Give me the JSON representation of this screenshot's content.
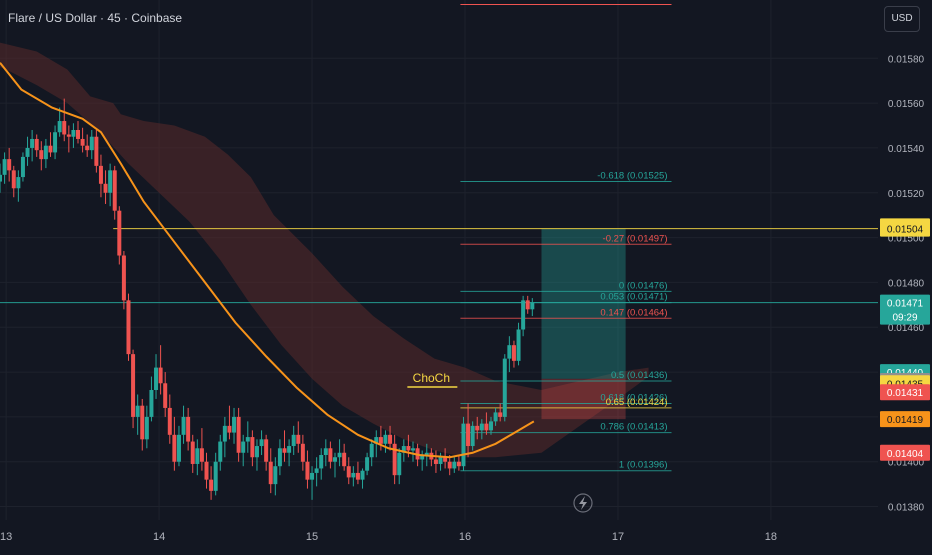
{
  "header": {
    "title": "Flare / US Dollar · 45 · Coinbase",
    "currency_button": "USD"
  },
  "colors": {
    "background": "#131722",
    "up": "#26a69a",
    "down": "#ef5350",
    "ma": "#f7931a",
    "cloud": "#5a2a2a",
    "fib": "#26a69a",
    "fib_red": "#ef5350",
    "fib_yellow": "#f5d742"
  },
  "icons": {
    "replay": "lightning-icon"
  },
  "chart_data": {
    "type": "candlestick",
    "title": "Flare / US Dollar · 45 · Coinbase",
    "xlabel": "",
    "ylabel": "",
    "x_ticks": [
      "13",
      "14",
      "15",
      "16",
      "17",
      "18"
    ],
    "y_ticks": [
      "0.01380",
      "0.01400",
      "0.01420",
      "0.01440",
      "0.01460",
      "0.01480",
      "0.01500",
      "0.01520",
      "0.01540",
      "0.01560",
      "0.01580"
    ],
    "ylim": [
      0.01374,
      0.01606
    ],
    "xlim": [
      12.96,
      18.7
    ],
    "candles": [
      [
        12.96,
        0.01525,
        0.01533,
        0.0152,
        0.01528
      ],
      [
        12.99,
        0.01528,
        0.01538,
        0.01524,
        0.01535
      ],
      [
        13.02,
        0.01535,
        0.0154,
        0.01525,
        0.0153
      ],
      [
        13.05,
        0.0153,
        0.01532,
        0.01518,
        0.01522
      ],
      [
        13.08,
        0.01522,
        0.0153,
        0.01516,
        0.01527
      ],
      [
        13.11,
        0.01527,
        0.01538,
        0.01525,
        0.01536
      ],
      [
        13.14,
        0.01536,
        0.01545,
        0.01532,
        0.0154
      ],
      [
        13.17,
        0.0154,
        0.01548,
        0.01534,
        0.01544
      ],
      [
        13.2,
        0.01544,
        0.01546,
        0.01536,
        0.01539
      ],
      [
        13.23,
        0.01539,
        0.01543,
        0.0153,
        0.01535
      ],
      [
        13.26,
        0.01535,
        0.01544,
        0.01531,
        0.01541
      ],
      [
        13.29,
        0.01541,
        0.01547,
        0.01536,
        0.01538
      ],
      [
        13.32,
        0.01538,
        0.0155,
        0.01535,
        0.01547
      ],
      [
        13.35,
        0.01547,
        0.01558,
        0.01545,
        0.01552
      ],
      [
        13.38,
        0.01552,
        0.01562,
        0.01543,
        0.01546
      ],
      [
        13.41,
        0.01546,
        0.0155,
        0.01538,
        0.01545
      ],
      [
        13.44,
        0.01545,
        0.01551,
        0.0154,
        0.01548
      ],
      [
        13.47,
        0.01548,
        0.01552,
        0.01542,
        0.01544
      ],
      [
        13.5,
        0.01544,
        0.01549,
        0.01538,
        0.01541
      ],
      [
        13.53,
        0.01541,
        0.01546,
        0.01536,
        0.01539
      ],
      [
        13.56,
        0.01539,
        0.01548,
        0.01535,
        0.01545
      ],
      [
        13.59,
        0.01545,
        0.01548,
        0.01529,
        0.01532
      ],
      [
        13.62,
        0.01532,
        0.01537,
        0.01518,
        0.01524
      ],
      [
        13.65,
        0.01524,
        0.0153,
        0.01515,
        0.0152
      ],
      [
        13.68,
        0.0152,
        0.01533,
        0.01514,
        0.0153
      ],
      [
        13.71,
        0.0153,
        0.01532,
        0.01508,
        0.01512
      ],
      [
        13.74,
        0.01512,
        0.01514,
        0.01488,
        0.01492
      ],
      [
        13.77,
        0.01492,
        0.01494,
        0.01468,
        0.01472
      ],
      [
        13.8,
        0.01472,
        0.01475,
        0.01445,
        0.01448
      ],
      [
        13.83,
        0.01448,
        0.0145,
        0.01415,
        0.0142
      ],
      [
        13.86,
        0.0142,
        0.0143,
        0.01412,
        0.01425
      ],
      [
        13.89,
        0.01425,
        0.01428,
        0.01405,
        0.0141
      ],
      [
        13.92,
        0.0141,
        0.01425,
        0.01406,
        0.0142
      ],
      [
        13.95,
        0.0142,
        0.01438,
        0.01418,
        0.01432
      ],
      [
        13.98,
        0.01432,
        0.01448,
        0.01428,
        0.01442
      ],
      [
        14.01,
        0.01442,
        0.01452,
        0.0143,
        0.01435
      ],
      [
        14.04,
        0.01435,
        0.0144,
        0.0142,
        0.01424
      ],
      [
        14.07,
        0.01424,
        0.0143,
        0.01408,
        0.01412
      ],
      [
        14.1,
        0.01412,
        0.0142,
        0.01396,
        0.014
      ],
      [
        14.13,
        0.014,
        0.01416,
        0.01398,
        0.01412
      ],
      [
        14.16,
        0.01412,
        0.01425,
        0.01408,
        0.0142
      ],
      [
        14.19,
        0.0142,
        0.01424,
        0.01405,
        0.01409
      ],
      [
        14.22,
        0.01409,
        0.01412,
        0.01395,
        0.01399
      ],
      [
        14.25,
        0.01399,
        0.0141,
        0.01394,
        0.01406
      ],
      [
        14.28,
        0.01406,
        0.01415,
        0.01396,
        0.014
      ],
      [
        14.31,
        0.014,
        0.01404,
        0.01388,
        0.01392
      ],
      [
        14.34,
        0.01392,
        0.01398,
        0.01383,
        0.01387
      ],
      [
        14.37,
        0.01387,
        0.01404,
        0.01385,
        0.014
      ],
      [
        14.4,
        0.014,
        0.01412,
        0.01396,
        0.01409
      ],
      [
        14.43,
        0.01409,
        0.0142,
        0.01402,
        0.01416
      ],
      [
        14.46,
        0.01416,
        0.01425,
        0.0141,
        0.01413
      ],
      [
        14.49,
        0.01413,
        0.01424,
        0.01408,
        0.0142
      ],
      [
        14.52,
        0.0142,
        0.01424,
        0.014,
        0.01404
      ],
      [
        14.55,
        0.01404,
        0.01412,
        0.01398,
        0.01409
      ],
      [
        14.58,
        0.01409,
        0.01418,
        0.01404,
        0.01411
      ],
      [
        14.61,
        0.01411,
        0.01414,
        0.01398,
        0.01402
      ],
      [
        14.64,
        0.01402,
        0.0141,
        0.01396,
        0.01407
      ],
      [
        14.67,
        0.01407,
        0.01414,
        0.01403,
        0.0141
      ],
      [
        14.7,
        0.0141,
        0.01412,
        0.01396,
        0.014
      ],
      [
        14.73,
        0.014,
        0.01406,
        0.01386,
        0.0139
      ],
      [
        14.76,
        0.0139,
        0.01402,
        0.01385,
        0.01398
      ],
      [
        14.79,
        0.01398,
        0.0141,
        0.01394,
        0.01406
      ],
      [
        14.82,
        0.01406,
        0.01414,
        0.014,
        0.01404
      ],
      [
        14.85,
        0.01404,
        0.0141,
        0.01398,
        0.01407
      ],
      [
        14.88,
        0.01407,
        0.01416,
        0.01403,
        0.01412
      ],
      [
        14.91,
        0.01412,
        0.01418,
        0.01404,
        0.01408
      ],
      [
        14.94,
        0.01408,
        0.01412,
        0.01396,
        0.014
      ],
      [
        14.97,
        0.014,
        0.01405,
        0.01388,
        0.01392
      ],
      [
        15.0,
        0.01392,
        0.01398,
        0.01383,
        0.01395
      ],
      [
        15.03,
        0.01395,
        0.01402,
        0.01389,
        0.01397
      ],
      [
        15.06,
        0.01397,
        0.01406,
        0.01392,
        0.01403
      ],
      [
        15.09,
        0.01403,
        0.0141,
        0.01398,
        0.01406
      ],
      [
        15.12,
        0.01406,
        0.01409,
        0.01397,
        0.014
      ],
      [
        15.15,
        0.014,
        0.01404,
        0.01393,
        0.01402
      ],
      [
        15.18,
        0.01402,
        0.0141,
        0.01398,
        0.01404
      ],
      [
        15.21,
        0.01404,
        0.01408,
        0.01396,
        0.01398
      ],
      [
        15.24,
        0.01398,
        0.01402,
        0.0139,
        0.01393
      ],
      [
        15.27,
        0.01393,
        0.01398,
        0.01389,
        0.01395
      ],
      [
        15.3,
        0.01395,
        0.014,
        0.0139,
        0.01392
      ],
      [
        15.33,
        0.01392,
        0.01397,
        0.01388,
        0.01396
      ],
      [
        15.36,
        0.01396,
        0.01404,
        0.01394,
        0.01402
      ],
      [
        15.39,
        0.01402,
        0.0141,
        0.01398,
        0.01408
      ],
      [
        15.42,
        0.01408,
        0.01414,
        0.01402,
        0.01411
      ],
      [
        15.45,
        0.01411,
        0.01416,
        0.01405,
        0.01408
      ],
      [
        15.48,
        0.01408,
        0.01414,
        0.01404,
        0.01412
      ],
      [
        15.51,
        0.01412,
        0.01416,
        0.01405,
        0.01408
      ],
      [
        15.54,
        0.01408,
        0.01412,
        0.0139,
        0.01394
      ],
      [
        15.57,
        0.01394,
        0.01406,
        0.0139,
        0.01404
      ],
      [
        15.6,
        0.01404,
        0.0141,
        0.014,
        0.01407
      ],
      [
        15.63,
        0.01407,
        0.01412,
        0.01402,
        0.01405
      ],
      [
        15.66,
        0.01405,
        0.01409,
        0.014,
        0.01406
      ],
      [
        15.69,
        0.01406,
        0.01408,
        0.01398,
        0.01401
      ],
      [
        15.72,
        0.01401,
        0.01405,
        0.01396,
        0.01403
      ],
      [
        15.75,
        0.01403,
        0.01408,
        0.01398,
        0.01404
      ],
      [
        15.78,
        0.01404,
        0.01406,
        0.01398,
        0.01401
      ],
      [
        15.81,
        0.01401,
        0.01405,
        0.01395,
        0.01399
      ],
      [
        15.84,
        0.01399,
        0.01404,
        0.01396,
        0.01402
      ],
      [
        15.87,
        0.01402,
        0.01406,
        0.01397,
        0.014
      ],
      [
        15.9,
        0.014,
        0.01403,
        0.01394,
        0.01397
      ],
      [
        15.93,
        0.01397,
        0.01402,
        0.01395,
        0.014
      ],
      [
        15.96,
        0.014,
        0.01403,
        0.01396,
        0.01398
      ],
      [
        15.99,
        0.01398,
        0.0142,
        0.01396,
        0.01417
      ],
      [
        16.02,
        0.01417,
        0.01426,
        0.01402,
        0.01407
      ],
      [
        16.05,
        0.01407,
        0.01418,
        0.01405,
        0.01416
      ],
      [
        16.08,
        0.01416,
        0.0142,
        0.0141,
        0.01414
      ],
      [
        16.11,
        0.01414,
        0.01419,
        0.0141,
        0.01417
      ],
      [
        16.14,
        0.01417,
        0.01422,
        0.01412,
        0.01414
      ],
      [
        16.17,
        0.01414,
        0.0142,
        0.01412,
        0.01418
      ],
      [
        16.2,
        0.01418,
        0.01424,
        0.01416,
        0.01422
      ],
      [
        16.23,
        0.01422,
        0.01426,
        0.01418,
        0.0142
      ],
      [
        16.26,
        0.0142,
        0.01448,
        0.01418,
        0.01446
      ],
      [
        16.29,
        0.01446,
        0.01456,
        0.0144,
        0.01452
      ],
      [
        16.32,
        0.01452,
        0.01454,
        0.01442,
        0.01445
      ],
      [
        16.35,
        0.01445,
        0.01462,
        0.01443,
        0.01459
      ],
      [
        16.38,
        0.01459,
        0.01474,
        0.01456,
        0.01472
      ],
      [
        16.41,
        0.01472,
        0.01474,
        0.01466,
        0.01468
      ],
      [
        16.44,
        0.01468,
        0.01473,
        0.01465,
        0.01471
      ]
    ],
    "ma_line": [
      [
        12.96,
        0.01578
      ],
      [
        13.1,
        0.01566
      ],
      [
        13.3,
        0.01558
      ],
      [
        13.5,
        0.01553
      ],
      [
        13.62,
        0.01547
      ],
      [
        13.75,
        0.01533
      ],
      [
        13.9,
        0.01516
      ],
      [
        14.1,
        0.01498
      ],
      [
        14.3,
        0.0148
      ],
      [
        14.5,
        0.01462
      ],
      [
        14.7,
        0.01447
      ],
      [
        14.9,
        0.01433
      ],
      [
        15.1,
        0.01421
      ],
      [
        15.3,
        0.01412
      ],
      [
        15.5,
        0.01406
      ],
      [
        15.7,
        0.01403
      ],
      [
        15.9,
        0.01402
      ],
      [
        16.05,
        0.01404
      ],
      [
        16.2,
        0.01408
      ],
      [
        16.3,
        0.01412
      ],
      [
        16.45,
        0.01418
      ]
    ],
    "cloud_upper": [
      [
        12.96,
        0.01587
      ],
      [
        13.2,
        0.01583
      ],
      [
        13.4,
        0.01575
      ],
      [
        13.55,
        0.01563
      ],
      [
        13.7,
        0.0156
      ],
      [
        13.75,
        0.01555
      ],
      [
        13.9,
        0.01552
      ],
      [
        14.1,
        0.0155
      ],
      [
        14.3,
        0.01545
      ],
      [
        14.45,
        0.01537
      ],
      [
        14.6,
        0.01527
      ],
      [
        14.75,
        0.0151
      ],
      [
        15.0,
        0.01493
      ],
      [
        15.2,
        0.01478
      ],
      [
        15.4,
        0.01465
      ],
      [
        15.6,
        0.01455
      ],
      [
        15.8,
        0.01446
      ],
      [
        16.0,
        0.01442
      ],
      [
        16.2,
        0.01436
      ],
      [
        16.5,
        0.01432
      ],
      [
        17.0,
        0.0144
      ],
      [
        17.2,
        0.01442
      ]
    ],
    "cloud_lower": [
      [
        17.2,
        0.01438
      ],
      [
        17.0,
        0.01428
      ],
      [
        16.5,
        0.01404
      ],
      [
        16.2,
        0.01402
      ],
      [
        16.0,
        0.01402
      ],
      [
        15.8,
        0.01405
      ],
      [
        15.6,
        0.0141
      ],
      [
        15.4,
        0.01417
      ],
      [
        15.2,
        0.01425
      ],
      [
        15.0,
        0.01437
      ],
      [
        14.8,
        0.01452
      ],
      [
        14.6,
        0.0147
      ],
      [
        14.4,
        0.0149
      ],
      [
        14.2,
        0.01507
      ],
      [
        14.0,
        0.0152
      ],
      [
        13.8,
        0.01533
      ],
      [
        13.6,
        0.01548
      ],
      [
        13.4,
        0.0156
      ],
      [
        13.2,
        0.01568
      ],
      [
        13.0,
        0.01575
      ],
      [
        12.96,
        0.01576
      ]
    ],
    "fib_levels": [
      {
        "label": "-0.618 (0.01525)",
        "value": 0.01525,
        "color": "#26a69a"
      },
      {
        "label": "-0.27 (0.01497)",
        "value": 0.01497,
        "color": "#ef5350"
      },
      {
        "label": "0 (0.01476)",
        "value": 0.01476,
        "color": "#26a69a"
      },
      {
        "label": "0.053 (0.01471)",
        "value": 0.01471,
        "color": "#26a69a"
      },
      {
        "label": "0.147 (0.01464)",
        "value": 0.01464,
        "color": "#ef5350"
      },
      {
        "label": "0.5 (0.01436)",
        "value": 0.01436,
        "color": "#26a69a"
      },
      {
        "label": "0.618 (0.01426)",
        "value": 0.01426,
        "color": "#26a69a"
      },
      {
        "label": "0.65 (0.01424)",
        "value": 0.01424,
        "color": "#f5d742"
      },
      {
        "label": "0.786 (0.01413)",
        "value": 0.01413,
        "color": "#26a69a"
      },
      {
        "label": "1 (0.01396)",
        "value": 0.01396,
        "color": "#26a69a"
      }
    ],
    "horizontal_lines": [
      {
        "value": 0.01504,
        "color": "#f5d742"
      },
      {
        "value": 0.01471,
        "color": "#26a69a"
      }
    ],
    "position_box": {
      "x_start": 16.5,
      "x_end": 17.05,
      "entry": 0.01437,
      "target": 0.01504,
      "stop": 0.01419
    },
    "annotations": [
      {
        "text": "ChoCh",
        "x": 15.78,
        "y": 0.01432
      }
    ],
    "price_labels": [
      {
        "text": "0.01505",
        "value": 0.01505,
        "bg": "#f5d742",
        "fg": "#131722"
      },
      {
        "text": "0.01504",
        "value": 0.01504,
        "bg": "#f5d742",
        "fg": "#131722"
      },
      {
        "text": "0.01471",
        "value": 0.01471,
        "bg": "#26a69a",
        "fg": "#ffffff",
        "sub": "09:29"
      },
      {
        "text": "0.01440",
        "value": 0.0144,
        "bg": "#26a69a",
        "fg": "#ffffff"
      },
      {
        "text": "0.01436",
        "value": 0.01436,
        "bg": "#8f8f8f",
        "fg": "#ffffff"
      },
      {
        "text": "0.01435",
        "value": 0.01435,
        "bg": "#f5d742",
        "fg": "#131722"
      },
      {
        "text": "0.01431",
        "value": 0.01431,
        "bg": "#ef5350",
        "fg": "#ffffff"
      },
      {
        "text": "0.01419",
        "value": 0.01419,
        "bg": "#f7931a",
        "fg": "#131722"
      },
      {
        "text": "0.01404",
        "value": 0.01404,
        "bg": "#ef5350",
        "fg": "#ffffff"
      }
    ]
  }
}
